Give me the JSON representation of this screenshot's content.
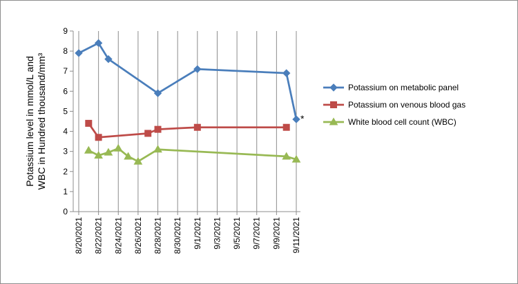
{
  "chart_data": {
    "type": "line",
    "ylabel_line1": "Potassium level in mmol/L and",
    "ylabel_line2": "WBC in Hundred thousand/mm³",
    "ylim": [
      0,
      9
    ],
    "yticks": [
      0,
      1,
      2,
      3,
      4,
      5,
      6,
      7,
      8,
      9
    ],
    "xlim": [
      "2021-08-20",
      "2021-09-11"
    ],
    "xtick_labels": [
      "8/20/2021",
      "8/22/2021",
      "8/24/2021",
      "8/26/2021",
      "8/28/2021",
      "8/30/2021",
      "9/1/2021",
      "9/3/2021",
      "9/5/2021",
      "9/7/2021",
      "9/9/2021",
      "9/11/2021"
    ],
    "xtick_dates": [
      "2021-08-20",
      "2021-08-22",
      "2021-08-24",
      "2021-08-26",
      "2021-08-28",
      "2021-08-30",
      "2021-09-01",
      "2021-09-03",
      "2021-09-05",
      "2021-09-07",
      "2021-09-09",
      "2021-09-11"
    ],
    "grid": "vertical",
    "legend_position": "right",
    "annotation": {
      "text": "*",
      "x": "2021-09-11",
      "y": 4.6
    },
    "series": [
      {
        "name": "Potassium on metabolic panel",
        "color": "#4a7ebb",
        "marker": "diamond",
        "points": [
          {
            "x": "2021-08-20",
            "y": 7.9
          },
          {
            "x": "2021-08-22",
            "y": 8.4
          },
          {
            "x": "2021-08-23",
            "y": 7.6
          },
          {
            "x": "2021-08-28",
            "y": 5.9
          },
          {
            "x": "2021-09-01",
            "y": 7.1
          },
          {
            "x": "2021-09-10",
            "y": 6.9
          },
          {
            "x": "2021-09-11",
            "y": 4.6
          }
        ]
      },
      {
        "name": "Potassium on venous blood gas",
        "color": "#be4b48",
        "marker": "square",
        "points": [
          {
            "x": "2021-08-21",
            "y": 4.4
          },
          {
            "x": "2021-08-22",
            "y": 3.7
          },
          {
            "x": "2021-08-27",
            "y": 3.9
          },
          {
            "x": "2021-08-28",
            "y": 4.1
          },
          {
            "x": "2021-09-01",
            "y": 4.2
          },
          {
            "x": "2021-09-10",
            "y": 4.2
          }
        ]
      },
      {
        "name": "White blood cell count (WBC)",
        "color": "#98b954",
        "marker": "triangle",
        "points": [
          {
            "x": "2021-08-21",
            "y": 3.05
          },
          {
            "x": "2021-08-22",
            "y": 2.8
          },
          {
            "x": "2021-08-23",
            "y": 2.95
          },
          {
            "x": "2021-08-24",
            "y": 3.15
          },
          {
            "x": "2021-08-25",
            "y": 2.75
          },
          {
            "x": "2021-08-26",
            "y": 2.5
          },
          {
            "x": "2021-08-28",
            "y": 3.1
          },
          {
            "x": "2021-09-10",
            "y": 2.75
          },
          {
            "x": "2021-09-11",
            "y": 2.6
          }
        ]
      }
    ]
  }
}
